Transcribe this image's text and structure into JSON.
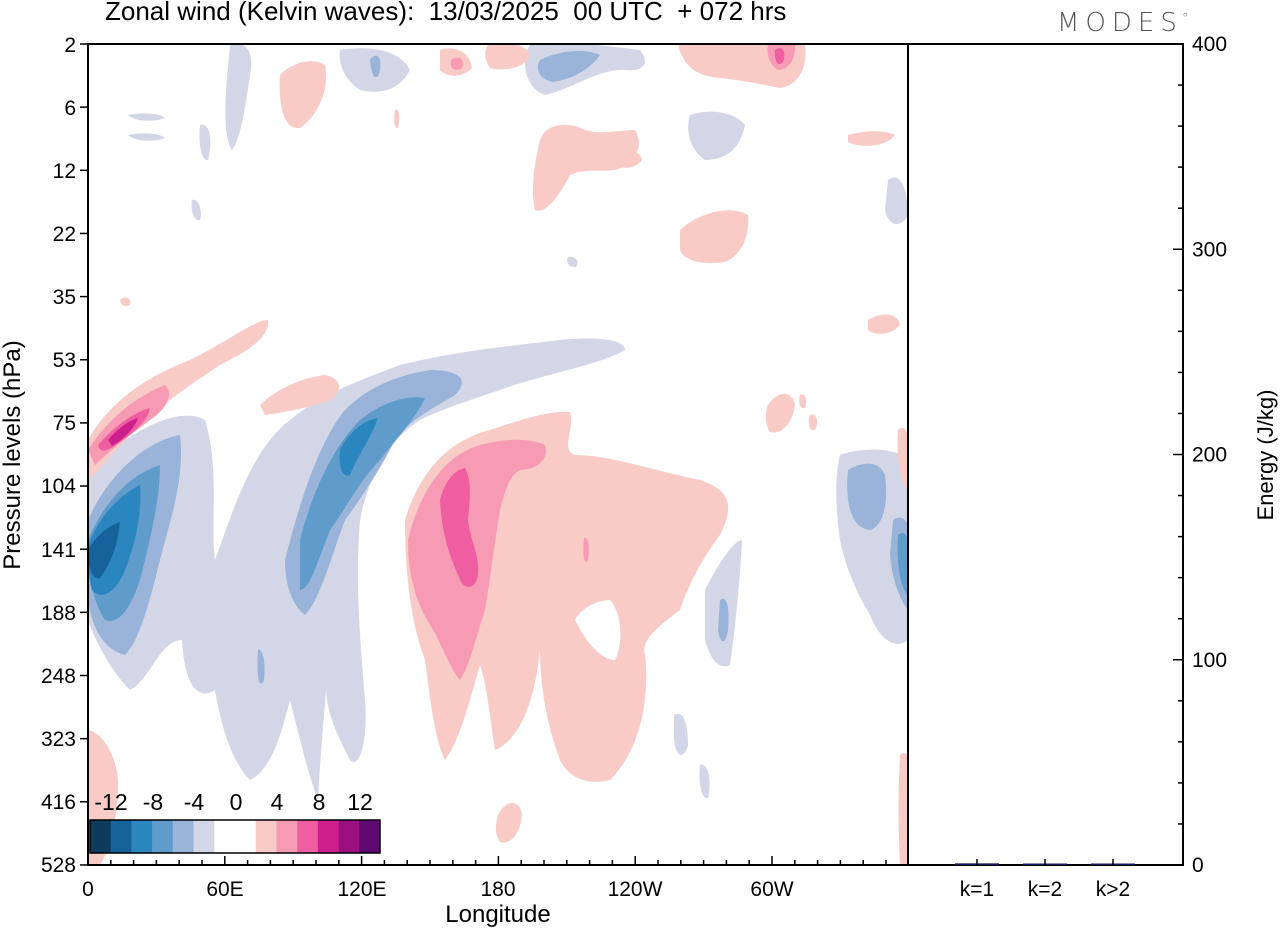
{
  "title": "Zonal wind (Kelvin waves):  13/03/2025  00 UTC  + 072 hrs",
  "logo": "MODES",
  "colors": {
    "neg": [
      "#0e3a5c",
      "#15639a",
      "#2b86bf",
      "#5f9ccb",
      "#99b4d8",
      "#d3d6e7"
    ],
    "zero": "#ffffff",
    "pos": [
      "#f8cbc7",
      "#f79bb4",
      "#ee5ea0",
      "#cc1f8b",
      "#9b0f7f",
      "#5e0872"
    ]
  },
  "chart_data": [
    {
      "type": "heatmap",
      "title": "Zonal wind (Kelvin waves):  13/03/2025  00 UTC  + 072 hrs",
      "xlabel": "Longitude",
      "ylabel": "Pressure levels (hPa)",
      "x_ticks": [
        "0",
        "60E",
        "120E",
        "180",
        "120W",
        "60W"
      ],
      "y_ticks": [
        "2",
        "6",
        "12",
        "22",
        "35",
        "53",
        "75",
        "104",
        "141",
        "188",
        "248",
        "323",
        "416",
        "528"
      ],
      "colorbar_labels": [
        "-12",
        "-8",
        "-4",
        "0",
        "4",
        "8",
        "12"
      ],
      "features": [
        {
          "sign": "neg",
          "level": 5,
          "lon": 20,
          "plev": 141,
          "note": "strongest easterly core near 0-30E, 104-188 hPa"
        },
        {
          "sign": "neg",
          "level": 4,
          "lon": 118,
          "plev": 95
        },
        {
          "sign": "pos",
          "level": 3,
          "lon": 162,
          "plev": 120,
          "note": "westerly core near 150-170E, 104-160 hPa"
        },
        {
          "sign": "pos",
          "level": 3,
          "lon": 12,
          "plev": 80
        }
      ]
    },
    {
      "type": "bar",
      "ylabel": "Energy (J/kg)",
      "ylim": [
        0,
        400
      ],
      "y_ticks": [
        "0",
        "100",
        "200",
        "300",
        "400"
      ],
      "categories": [
        "k=1",
        "k=2",
        "k>2"
      ],
      "values": [
        0.8,
        0.3,
        0.5
      ]
    }
  ]
}
